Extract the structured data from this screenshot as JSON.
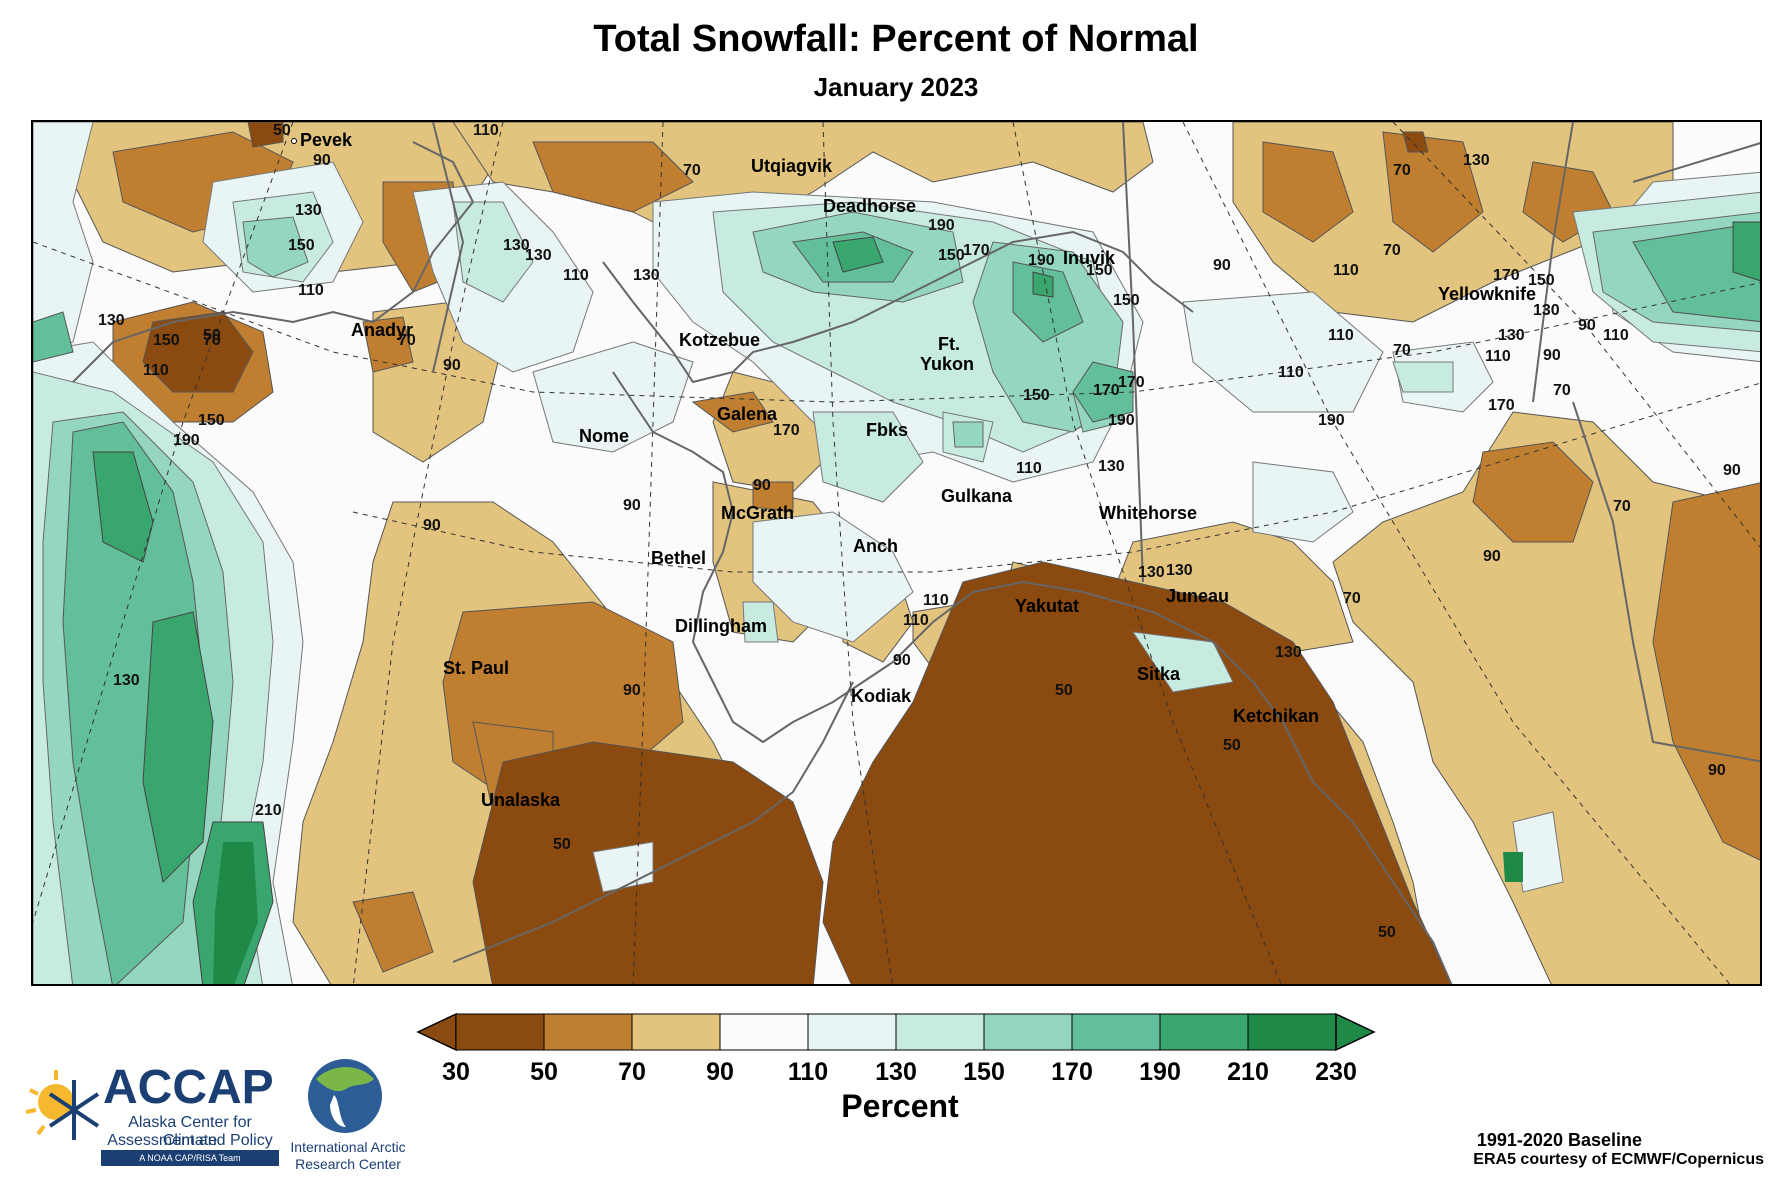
{
  "title": "Total Snowfall: Percent of Normal",
  "subtitle": "January 2023",
  "colorbar": {
    "label": "Percent",
    "ticks": [
      "30",
      "50",
      "70",
      "90",
      "110",
      "130",
      "150",
      "170",
      "190",
      "210",
      "230"
    ],
    "colors": [
      "#8b4a10",
      "#c07e30",
      "#e2c47e",
      "#fbfbfb",
      "#e9f5f4",
      "#c8ebe1",
      "#94d6c0",
      "#62bf9a",
      "#38a66d",
      "#1f8a47"
    ],
    "under_color": "#8b4a10",
    "over_color": "#1f8a47"
  },
  "cities": [
    {
      "name": "Pevek"
    },
    {
      "name": "Utqiagvik"
    },
    {
      "name": "Deadhorse"
    },
    {
      "name": "Inuvik"
    },
    {
      "name": "Yellowknife"
    },
    {
      "name": "Anadyr"
    },
    {
      "name": "Kotzebue"
    },
    {
      "name": "Ft."
    },
    {
      "name": "Yukon"
    },
    {
      "name": "Galena"
    },
    {
      "name": "Nome"
    },
    {
      "name": "Fbks"
    },
    {
      "name": "Gulkana"
    },
    {
      "name": "Whitehorse"
    },
    {
      "name": "McGrath"
    },
    {
      "name": "Bethel"
    },
    {
      "name": "Anch"
    },
    {
      "name": "Yakutat"
    },
    {
      "name": "Juneau"
    },
    {
      "name": "Dillingham"
    },
    {
      "name": "St. Paul"
    },
    {
      "name": "Sitka"
    },
    {
      "name": "Kodiak"
    },
    {
      "name": "Ketchikan"
    },
    {
      "name": "Unalaska"
    }
  ],
  "contour_labels": [
    "50",
    "90",
    "70",
    "130",
    "110",
    "150",
    "130",
    "150",
    "110",
    "90",
    "70",
    "50",
    "130",
    "110",
    "70",
    "130",
    "110",
    "90",
    "130",
    "190",
    "170",
    "150",
    "190",
    "150",
    "90",
    "110",
    "70",
    "130",
    "170",
    "150",
    "110",
    "130",
    "90",
    "110",
    "70",
    "150",
    "190",
    "130",
    "90",
    "170",
    "170",
    "150",
    "130",
    "50",
    "110",
    "170",
    "190",
    "110",
    "70",
    "110",
    "130",
    "90",
    "90",
    "70",
    "90",
    "110",
    "90",
    "210",
    "90",
    "50",
    "110",
    "130",
    "170",
    "190",
    "150",
    "130",
    "90",
    "50",
    "70",
    "50",
    "130",
    "90",
    "70"
  ],
  "credits": {
    "baseline": "1991-2020 Baseline",
    "source": "ERA5 courtesy of ECMWF/Copernicus"
  },
  "logos": {
    "accap_name": "ACCAP",
    "accap_line1": "Alaska Center for Climate",
    "accap_line2": "Assessment and Policy",
    "accap_tag": "A NOAA CAP/RISA Team",
    "iarc_line1": "International Arctic",
    "iarc_line2": "Research Center"
  }
}
